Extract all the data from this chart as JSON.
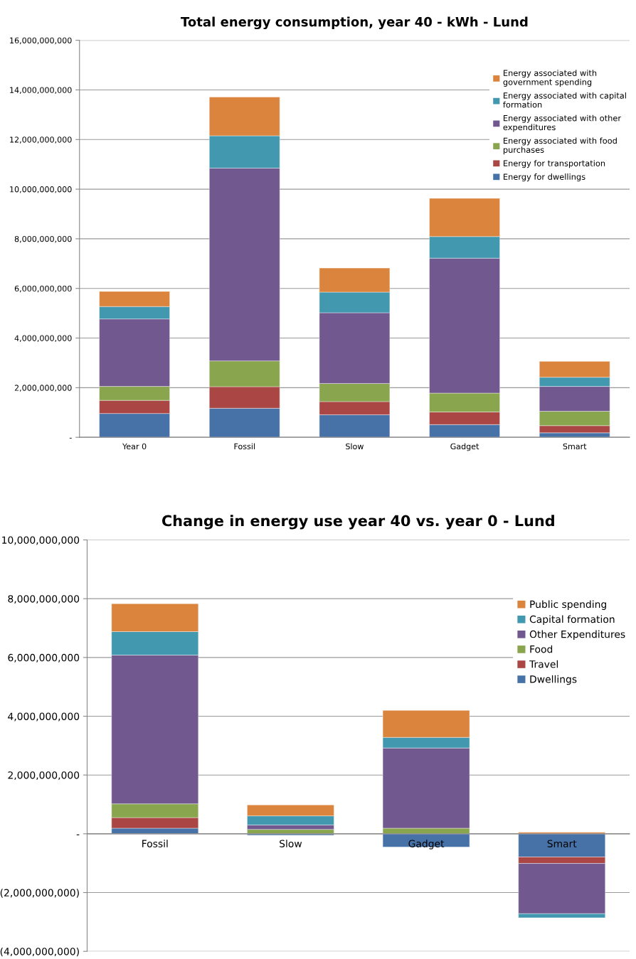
{
  "chart_data": [
    {
      "type": "bar",
      "title": "Total energy consumption, year 40 - kWh - Lund",
      "stacked": true,
      "categories": [
        "Year 0",
        "Fossil",
        "Slow",
        "Gadget",
        "Smart"
      ],
      "series": [
        {
          "name": "Energy for dwellings",
          "color": "#4672a8",
          "values": [
            960000000,
            1170000000,
            910000000,
            510000000,
            180000000
          ]
        },
        {
          "name": "Energy for transportation",
          "color": "#aa4644",
          "values": [
            530000000,
            870000000,
            530000000,
            510000000,
            290000000
          ]
        },
        {
          "name": "Energy associated with food purchases",
          "color": "#89a54e",
          "values": [
            560000000,
            1040000000,
            730000000,
            760000000,
            580000000
          ]
        },
        {
          "name": "Energy associated with other expenditures",
          "color": "#71588f",
          "values": [
            2720000000,
            7770000000,
            2850000000,
            5440000000,
            1000000000
          ]
        },
        {
          "name": "Energy associated with capital formation",
          "color": "#4198af",
          "values": [
            500000000,
            1300000000,
            830000000,
            870000000,
            370000000
          ]
        },
        {
          "name": "Energy associated with government spending",
          "color": "#db843d",
          "values": [
            610000000,
            1560000000,
            970000000,
            1540000000,
            640000000
          ]
        }
      ],
      "ylim": [
        0,
        16000000000
      ],
      "yticks": [
        {
          "value": 0,
          "label": "-"
        },
        {
          "value": 2000000000,
          "label": "2,000,000,000"
        },
        {
          "value": 4000000000,
          "label": "4,000,000,000"
        },
        {
          "value": 6000000000,
          "label": "6,000,000,000"
        },
        {
          "value": 8000000000,
          "label": "8,000,000,000"
        },
        {
          "value": 10000000000,
          "label": "10,000,000,000"
        },
        {
          "value": 12000000000,
          "label": "12,000,000,000"
        },
        {
          "value": 14000000000,
          "label": "14,000,000,000"
        },
        {
          "value": 16000000000,
          "label": "16,000,000,000"
        }
      ],
      "grid": "y",
      "legend": "top right"
    },
    {
      "type": "bar",
      "title": "Change in energy use year 40 vs. year 0 - Lund",
      "stacked": true,
      "categories": [
        "Fossil",
        "Slow",
        "Gadget",
        "Smart"
      ],
      "series": [
        {
          "name": "Dwellings",
          "color": "#4672a8",
          "values": [
            190000000,
            -50000000,
            -450000000,
            -790000000
          ]
        },
        {
          "name": "Travel",
          "color": "#aa4644",
          "values": [
            360000000,
            0,
            0,
            -220000000
          ]
        },
        {
          "name": "Food",
          "color": "#89a54e",
          "values": [
            470000000,
            150000000,
            190000000,
            0
          ]
        },
        {
          "name": "Other Expenditures",
          "color": "#71588f",
          "values": [
            5060000000,
            150000000,
            2730000000,
            -1710000000
          ]
        },
        {
          "name": "Capital formation",
          "color": "#4198af",
          "values": [
            800000000,
            310000000,
            360000000,
            -140000000
          ]
        },
        {
          "name": "Public spending",
          "color": "#db843d",
          "values": [
            950000000,
            370000000,
            920000000,
            50000000
          ]
        }
      ],
      "ylim": [
        -4000000000,
        10000000000
      ],
      "yticks": [
        {
          "value": -4000000000,
          "label": "(4,000,000,000)"
        },
        {
          "value": -2000000000,
          "label": "(2,000,000,000)"
        },
        {
          "value": 0,
          "label": "-"
        },
        {
          "value": 2000000000,
          "label": "2,000,000,000"
        },
        {
          "value": 4000000000,
          "label": "4,000,000,000"
        },
        {
          "value": 6000000000,
          "label": "6,000,000,000"
        },
        {
          "value": 8000000000,
          "label": "8,000,000,000"
        },
        {
          "value": 10000000000,
          "label": "10,000,000,000"
        }
      ],
      "grid": "y",
      "legend": "top right"
    }
  ]
}
